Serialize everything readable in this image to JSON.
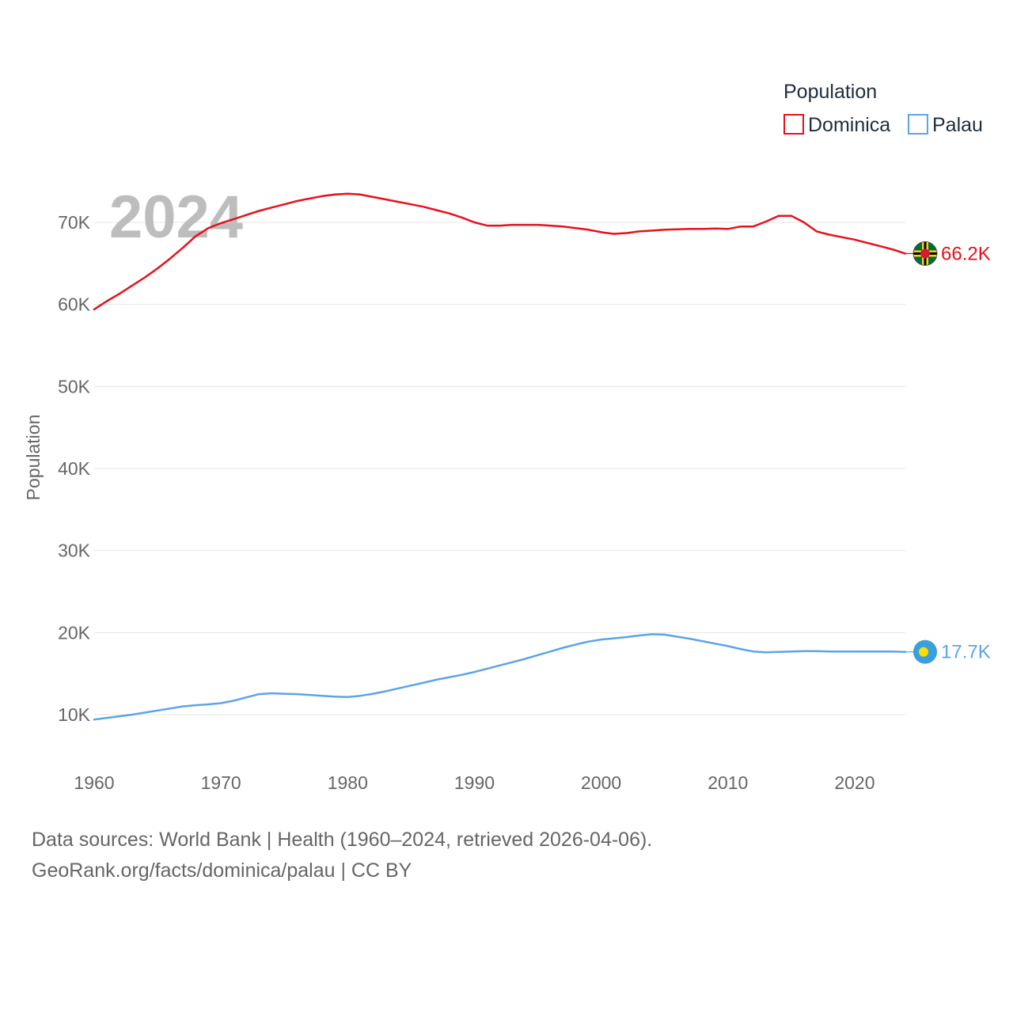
{
  "chart_data": {
    "type": "line",
    "year_label": "2024",
    "ylabel": "Population",
    "xlim": [
      1960,
      2024
    ],
    "ylim": [
      5000,
      77000
    ],
    "x_ticks": [
      1960,
      1970,
      1980,
      1990,
      2000,
      2010,
      2020
    ],
    "y_ticks": [
      {
        "value": 10000,
        "label": "10K"
      },
      {
        "value": 20000,
        "label": "20K"
      },
      {
        "value": 30000,
        "label": "30K"
      },
      {
        "value": 40000,
        "label": "40K"
      },
      {
        "value": 50000,
        "label": "50K"
      },
      {
        "value": 60000,
        "label": "60K"
      },
      {
        "value": 70000,
        "label": "70K"
      }
    ],
    "legend": {
      "title": "Population",
      "placement": "top-right"
    },
    "x": [
      1960,
      1961,
      1962,
      1963,
      1964,
      1965,
      1966,
      1967,
      1968,
      1969,
      1970,
      1971,
      1972,
      1973,
      1974,
      1975,
      1976,
      1977,
      1978,
      1979,
      1980,
      1981,
      1982,
      1983,
      1984,
      1985,
      1986,
      1987,
      1988,
      1989,
      1990,
      1991,
      1992,
      1993,
      1994,
      1995,
      1996,
      1997,
      1998,
      1999,
      2000,
      2001,
      2002,
      2003,
      2004,
      2005,
      2006,
      2007,
      2008,
      2009,
      2010,
      2011,
      2012,
      2013,
      2014,
      2015,
      2016,
      2017,
      2018,
      2019,
      2020,
      2021,
      2022,
      2023,
      2024
    ],
    "series": [
      {
        "name": "Dominica",
        "color": "#e8101a",
        "end_label": "66.2K",
        "flag": "dominica-flag",
        "values": [
          59400,
          60400,
          61300,
          62300,
          63300,
          64400,
          65600,
          66900,
          68300,
          69300,
          69900,
          70400,
          70900,
          71400,
          71800,
          72200,
          72600,
          72900,
          73200,
          73400,
          73500,
          73400,
          73100,
          72800,
          72500,
          72200,
          71900,
          71500,
          71100,
          70600,
          70000,
          69600,
          69600,
          69700,
          69700,
          69700,
          69600,
          69500,
          69300,
          69100,
          68800,
          68600,
          68700,
          68900,
          69000,
          69100,
          69150,
          69200,
          69200,
          69250,
          69200,
          69500,
          69500,
          70100,
          70800,
          70800,
          70000,
          68900,
          68500,
          68200,
          67900,
          67500,
          67100,
          66700,
          66200
        ]
      },
      {
        "name": "Palau",
        "color": "#5ca4e8",
        "end_label": "17.7K",
        "flag": "palau-flag",
        "values": [
          9400,
          9600,
          9800,
          10000,
          10250,
          10500,
          10750,
          11000,
          11150,
          11250,
          11400,
          11700,
          12100,
          12500,
          12600,
          12550,
          12500,
          12400,
          12300,
          12200,
          12150,
          12300,
          12550,
          12850,
          13200,
          13550,
          13900,
          14250,
          14550,
          14850,
          15200,
          15600,
          16000,
          16400,
          16800,
          17250,
          17700,
          18150,
          18550,
          18900,
          19150,
          19300,
          19450,
          19650,
          19800,
          19750,
          19500,
          19250,
          18950,
          18650,
          18350,
          18000,
          17700,
          17600,
          17650,
          17700,
          17750,
          17750,
          17700,
          17700,
          17700,
          17700,
          17700,
          17700,
          17650
        ]
      }
    ]
  },
  "footer": {
    "source_line": "Data sources: World Bank | Health (1960–2024, retrieved 2026-04-06).",
    "url_line": "GeoRank.org/facts/dominica/palau | CC BY"
  }
}
